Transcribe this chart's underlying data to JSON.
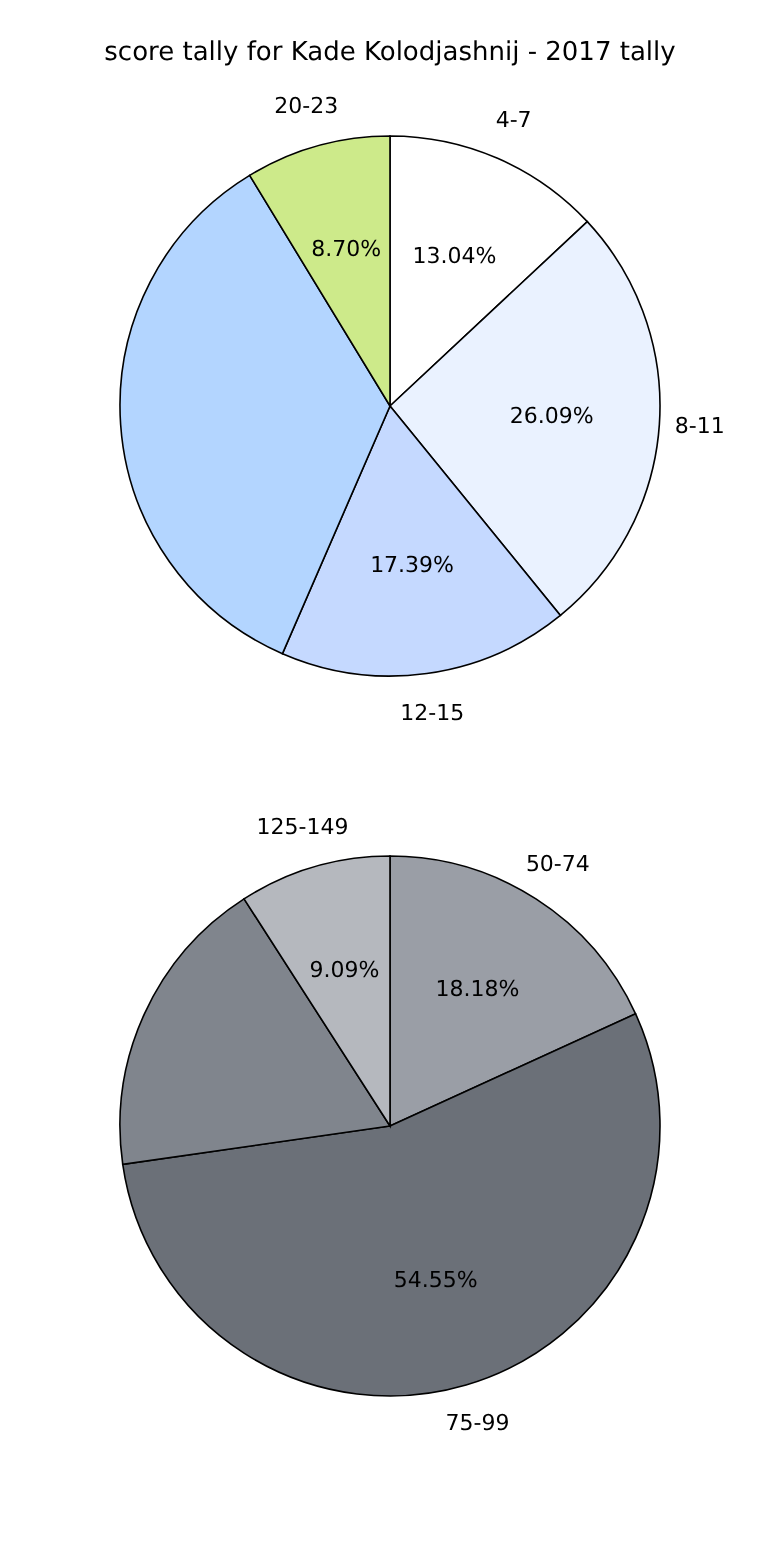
{
  "chart_data": [
    {
      "type": "pie",
      "title": "score tally for Kade Kolodjashnij - 2017 tally",
      "categories": [
        "4-7",
        "8-11",
        "12-15",
        null,
        "20-23"
      ],
      "values": [
        13.04,
        26.09,
        17.39,
        34.78,
        8.7
      ],
      "value_labels": [
        "13.04%",
        "26.09%",
        "17.39%",
        null,
        "8.70%"
      ],
      "colors": [
        "#ffffff",
        "#eaf2ff",
        "#c5d9ff",
        "#b3d5ff",
        "#cdea8a"
      ]
    },
    {
      "type": "pie",
      "categories": [
        "50-74",
        "75-99",
        null,
        "125-149"
      ],
      "values": [
        18.18,
        54.55,
        18.18,
        9.09
      ],
      "value_labels": [
        "18.18%",
        "54.55%",
        null,
        "9.09%"
      ],
      "colors": [
        "#9a9ea6",
        "#6b7078",
        "#80858d",
        "#b5b8be"
      ]
    }
  ]
}
